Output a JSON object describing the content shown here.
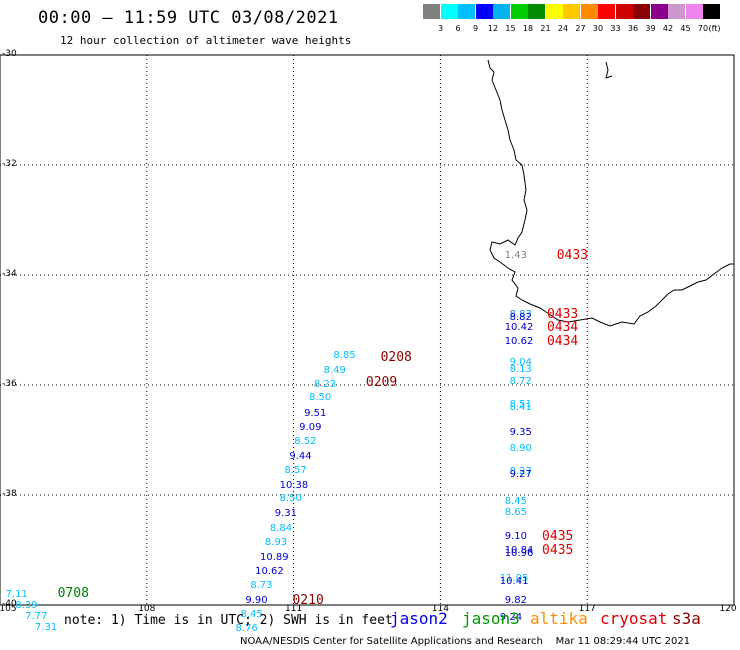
{
  "title": "00:00 – 11:59 UTC 03/08/2021",
  "subtitle": "12 hour collection of altimeter wave heights",
  "color_scale": {
    "colors": [
      "#808080",
      "#00ffff",
      "#00bfff",
      "#0000ff",
      "#00b2ee",
      "#00cd00",
      "#008b00",
      "#ffff00",
      "#ffc800",
      "#ff8c00",
      "#ff0000",
      "#cd0000",
      "#8b0000",
      "#8b008b",
      "#cd96cd",
      "#ee82ee",
      "#000000"
    ],
    "labels": [
      "3",
      "6",
      "9",
      "12",
      "15",
      "18",
      "21",
      "24",
      "27",
      "30",
      "33",
      "36",
      "39",
      "42",
      "45",
      "70"
    ],
    "unit": "(ft)"
  },
  "map": {
    "lon_range": [
      105,
      120
    ],
    "lat_range": [
      -40,
      -30
    ],
    "x_ticks": [
      "105",
      "108",
      "111",
      "114",
      "117",
      "120"
    ],
    "y_ticks": [
      "-30",
      "-32",
      "-34",
      "-36",
      "-38",
      "-40"
    ]
  },
  "observations": [
    {
      "lon": 115.6,
      "lat": -33.65,
      "text": "1.43",
      "color": "#808080"
    },
    {
      "lon": 115.7,
      "lat": -34.73,
      "text": "8.83",
      "color": "#1e90ff"
    },
    {
      "lon": 115.7,
      "lat": -34.78,
      "text": "8.82",
      "color": "#0000cd"
    },
    {
      "lon": 115.6,
      "lat": -34.96,
      "text": "10.42",
      "color": "#0000cd"
    },
    {
      "lon": 115.6,
      "lat": -35.22,
      "text": "10.62",
      "color": "#0000cd"
    },
    {
      "lon": 115.7,
      "lat": -35.6,
      "text": "9.04",
      "color": "#00bfff"
    },
    {
      "lon": 115.7,
      "lat": -35.72,
      "text": "8.13",
      "color": "#00bfff"
    },
    {
      "lon": 115.7,
      "lat": -35.94,
      "text": "8.72",
      "color": "#00bfff"
    },
    {
      "lon": 115.7,
      "lat": -36.36,
      "text": "8.51",
      "color": "#00bfff"
    },
    {
      "lon": 115.7,
      "lat": -36.42,
      "text": "8.41",
      "color": "#00bfff"
    },
    {
      "lon": 115.7,
      "lat": -36.88,
      "text": "9.35",
      "color": "#0000cd"
    },
    {
      "lon": 115.7,
      "lat": -37.16,
      "text": "8.90",
      "color": "#00bfff"
    },
    {
      "lon": 115.7,
      "lat": -37.58,
      "text": "8.27",
      "color": "#00bfff"
    },
    {
      "lon": 115.7,
      "lat": -37.64,
      "text": "9.27",
      "color": "#0000cd"
    },
    {
      "lon": 115.6,
      "lat": -38.12,
      "text": "8.45",
      "color": "#00bfff"
    },
    {
      "lon": 115.6,
      "lat": -38.32,
      "text": "8.65",
      "color": "#00bfff"
    },
    {
      "lon": 115.6,
      "lat": -38.76,
      "text": "9.10",
      "color": "#0000cd"
    },
    {
      "lon": 115.6,
      "lat": -39.02,
      "text": "10.84",
      "color": "#0000cd"
    },
    {
      "lon": 115.6,
      "lat": -39.08,
      "text": "10.96",
      "color": "#0000cd"
    },
    {
      "lon": 115.5,
      "lat": -39.52,
      "text": "11.05",
      "color": "#00bfff"
    },
    {
      "lon": 115.5,
      "lat": -39.58,
      "text": "10.41",
      "color": "#0000cd"
    },
    {
      "lon": 115.6,
      "lat": -39.92,
      "text": "9.82",
      "color": "#0000cd"
    },
    {
      "lon": 115.5,
      "lat": -40.24,
      "text": "9.24",
      "color": "#0000cd"
    },
    {
      "lon": 112.1,
      "lat": -35.48,
      "text": "8.85",
      "color": "#00bfff"
    },
    {
      "lon": 111.9,
      "lat": -35.74,
      "text": "8.49",
      "color": "#00bfff"
    },
    {
      "lon": 111.7,
      "lat": -36.0,
      "text": "8.23",
      "color": "#00bfff"
    },
    {
      "lon": 111.6,
      "lat": -36.24,
      "text": "8.50",
      "color": "#00bfff"
    },
    {
      "lon": 111.5,
      "lat": -36.52,
      "text": "9.51",
      "color": "#0000cd"
    },
    {
      "lon": 111.4,
      "lat": -36.78,
      "text": "9.09",
      "color": "#0000cd"
    },
    {
      "lon": 111.3,
      "lat": -37.04,
      "text": "8.52",
      "color": "#00bfff"
    },
    {
      "lon": 111.2,
      "lat": -37.3,
      "text": "9.44",
      "color": "#0000cd"
    },
    {
      "lon": 111.1,
      "lat": -37.56,
      "text": "8.57",
      "color": "#00bfff"
    },
    {
      "lon": 111.0,
      "lat": -37.84,
      "text": "10.38",
      "color": "#0000cd"
    },
    {
      "lon": 111.0,
      "lat": -38.08,
      "text": "8.50",
      "color": "#00bfff"
    },
    {
      "lon": 110.9,
      "lat": -38.34,
      "text": "9.31",
      "color": "#0000cd"
    },
    {
      "lon": 110.8,
      "lat": -38.62,
      "text": "8.84",
      "color": "#00bfff"
    },
    {
      "lon": 110.7,
      "lat": -38.88,
      "text": "8.93",
      "color": "#00bfff"
    },
    {
      "lon": 110.6,
      "lat": -39.14,
      "text": "10.89",
      "color": "#0000cd"
    },
    {
      "lon": 110.5,
      "lat": -39.4,
      "text": "10.62",
      "color": "#0000cd"
    },
    {
      "lon": 110.4,
      "lat": -39.66,
      "text": "8.73",
      "color": "#00bfff"
    },
    {
      "lon": 110.3,
      "lat": -39.92,
      "text": "9.90",
      "color": "#0000cd"
    },
    {
      "lon": 110.2,
      "lat": -40.18,
      "text": "8.45",
      "color": "#00bfff"
    },
    {
      "lon": 110.1,
      "lat": -40.44,
      "text": "8.76",
      "color": "#00bfff"
    },
    {
      "lon": 105.4,
      "lat": -39.82,
      "text": "7.11",
      "color": "#00bfff"
    },
    {
      "lon": 105.6,
      "lat": -40.02,
      "text": "8.39",
      "color": "#00bfff"
    },
    {
      "lon": 105.8,
      "lat": -40.22,
      "text": "7.77",
      "color": "#00bfff"
    },
    {
      "lon": 106.0,
      "lat": -40.42,
      "text": "7.31",
      "color": "#00bfff"
    }
  ],
  "pass_times": [
    {
      "lon": 116.5,
      "lat": -33.65,
      "text": "0433",
      "color": "#e00000"
    },
    {
      "lon": 116.3,
      "lat": -34.72,
      "text": "0433",
      "color": "#e00000"
    },
    {
      "lon": 116.3,
      "lat": -34.96,
      "text": "0434",
      "color": "#e00000"
    },
    {
      "lon": 116.3,
      "lat": -35.22,
      "text": "0434",
      "color": "#e00000"
    },
    {
      "lon": 116.2,
      "lat": -38.76,
      "text": "0435",
      "color": "#e00000"
    },
    {
      "lon": 116.2,
      "lat": -39.02,
      "text": "0435",
      "color": "#e00000"
    },
    {
      "lon": 112.9,
      "lat": -35.5,
      "text": "0208",
      "color": "#8b0000"
    },
    {
      "lon": 112.6,
      "lat": -35.96,
      "text": "0209",
      "color": "#8b0000"
    },
    {
      "lon": 111.1,
      "lat": -39.92,
      "text": "0210",
      "color": "#8b0000"
    },
    {
      "lon": 106.3,
      "lat": -39.8,
      "text": "0708",
      "color": "#008000"
    }
  ],
  "note": "note: 1) Time is in UTC; 2) SWH is in feet",
  "legend": [
    {
      "text": "jason2",
      "color": "#0000ee"
    },
    {
      "text": "jason3",
      "color": "#009900"
    },
    {
      "text": "altika",
      "color": "#ff8c00"
    },
    {
      "text": "cryosat",
      "color": "#e00000"
    },
    {
      "text": "s3a",
      "color": "#8b0000"
    }
  ],
  "credit": "NOAA/NESDIS Center for Satellite Applications and Research    Mar 11 08:29:44 UTC 2021"
}
